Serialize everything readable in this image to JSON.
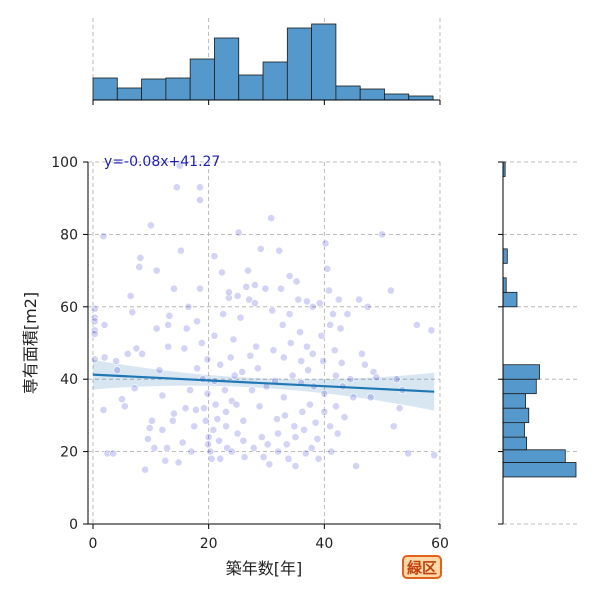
{
  "chart_data": {
    "type": "scatter",
    "subplots": "joint plot: scatter with linear regression, marginal histograms on top (x) and right (y)",
    "xlabel": "築年数[年]",
    "ylabel": "専有面積[m2]",
    "xlim": [
      0,
      60
    ],
    "ylim": [
      0,
      100
    ],
    "xticks": [
      0,
      20,
      40,
      60
    ],
    "yticks": [
      0,
      20,
      40,
      60,
      80,
      100
    ],
    "grid": true,
    "annotation": "y=-0.08x+41.27",
    "badge": "緑区",
    "colors": {
      "points": "#2222cc",
      "regression": "#1f77b4",
      "histogram": "#5599cc",
      "badge_bg": "#ffd9a8",
      "badge_border": "#e0621c"
    },
    "regression": {
      "slope": -0.08,
      "intercept": 41.27,
      "x_range": [
        0,
        59
      ]
    },
    "x_histogram": {
      "bin_edges": [
        0,
        4.2,
        8.4,
        12.6,
        16.8,
        21,
        25.2,
        29.4,
        33.6,
        37.8,
        42,
        46.2,
        50.4,
        54.6,
        58.8
      ],
      "counts": [
        22,
        12,
        21,
        22,
        41,
        62,
        25,
        38,
        72,
        76,
        14,
        11,
        6,
        4
      ]
    },
    "y_histogram": {
      "bin_edges": [
        13,
        17,
        20.5,
        24,
        28,
        32,
        36,
        40,
        44,
        48,
        52,
        56,
        60,
        64,
        68,
        72,
        76,
        80,
        84,
        88,
        92,
        96,
        100
      ],
      "counts": [
        68,
        58,
        22,
        20,
        24,
        21,
        31,
        34,
        0,
        0,
        0,
        0,
        13,
        3,
        0,
        4,
        0,
        0,
        0,
        0,
        0,
        2
      ]
    },
    "points": [
      [
        0.3,
        57
      ],
      [
        0.3,
        59.5
      ],
      [
        0.3,
        56
      ],
      [
        0.3,
        53.5
      ],
      [
        0.3,
        52.5
      ],
      [
        0.3,
        45.5
      ],
      [
        1.8,
        79.5
      ],
      [
        2,
        55
      ],
      [
        1.8,
        31.5
      ],
      [
        2,
        46
      ],
      [
        2.5,
        19.5
      ],
      [
        3.5,
        19.5
      ],
      [
        4,
        45
      ],
      [
        4.2,
        42.5
      ],
      [
        5,
        34.5
      ],
      [
        5.5,
        32.5
      ],
      [
        6,
        47
      ],
      [
        6.5,
        63
      ],
      [
        6.8,
        58.5
      ],
      [
        7.2,
        37.5
      ],
      [
        7.5,
        48.5
      ],
      [
        8,
        71
      ],
      [
        8.2,
        73.5
      ],
      [
        8.5,
        47
      ],
      [
        9,
        15
      ],
      [
        9.5,
        23.5
      ],
      [
        9.8,
        26.5
      ],
      [
        10,
        82.5
      ],
      [
        10.2,
        28.5
      ],
      [
        10.6,
        21
      ],
      [
        11,
        54
      ],
      [
        11,
        70
      ],
      [
        11.5,
        42.5
      ],
      [
        12,
        35.5
      ],
      [
        12.5,
        17.5
      ],
      [
        12,
        26
      ],
      [
        12.8,
        21
      ],
      [
        13,
        49
      ],
      [
        13,
        55
      ],
      [
        13.2,
        57.5
      ],
      [
        13.8,
        28.5
      ],
      [
        14,
        30.5
      ],
      [
        14,
        65
      ],
      [
        14.5,
        93
      ],
      [
        14.8,
        17
      ],
      [
        15,
        99
      ],
      [
        15.2,
        75.5
      ],
      [
        15.5,
        22.5
      ],
      [
        15.8,
        48.5
      ],
      [
        16,
        32
      ],
      [
        16.2,
        54
      ],
      [
        16.5,
        60
      ],
      [
        16.8,
        37
      ],
      [
        17,
        20
      ],
      [
        17.5,
        27
      ],
      [
        17.8,
        31.5
      ],
      [
        18,
        43
      ],
      [
        18,
        56
      ],
      [
        18.5,
        93
      ],
      [
        18.5,
        89.5
      ],
      [
        18.5,
        65
      ],
      [
        18.8,
        50
      ],
      [
        19,
        40
      ],
      [
        19.2,
        32
      ],
      [
        19.5,
        28.5
      ],
      [
        19.8,
        45.5
      ],
      [
        19.8,
        36
      ],
      [
        19.9,
        22
      ],
      [
        20,
        24
      ],
      [
        20.3,
        20
      ],
      [
        20.5,
        18
      ],
      [
        20.8,
        26
      ],
      [
        21,
        74
      ],
      [
        21,
        52
      ],
      [
        21,
        39.5
      ],
      [
        21.2,
        33
      ],
      [
        21.5,
        29
      ],
      [
        21.8,
        23
      ],
      [
        22,
        18
      ],
      [
        22,
        44
      ],
      [
        22.3,
        69.5
      ],
      [
        22.5,
        58
      ],
      [
        22.8,
        37
      ],
      [
        23,
        31
      ],
      [
        23,
        27
      ],
      [
        23.2,
        21
      ],
      [
        23.5,
        62.5
      ],
      [
        23.5,
        64
      ],
      [
        23.8,
        46
      ],
      [
        24,
        34
      ],
      [
        24,
        20
      ],
      [
        24.3,
        51
      ],
      [
        24.5,
        41
      ],
      [
        24.8,
        33
      ],
      [
        25,
        63
      ],
      [
        25,
        25
      ],
      [
        25.2,
        80.5
      ],
      [
        25.5,
        57
      ],
      [
        25.8,
        42
      ],
      [
        26,
        28.5
      ],
      [
        26,
        23
      ],
      [
        26.2,
        18.5
      ],
      [
        26.5,
        65.5
      ],
      [
        26.8,
        70
      ],
      [
        27,
        62
      ],
      [
        27.2,
        46.5
      ],
      [
        27.5,
        37
      ],
      [
        27.8,
        21
      ],
      [
        28,
        66
      ],
      [
        28,
        61
      ],
      [
        28.2,
        49
      ],
      [
        28.5,
        43
      ],
      [
        28.8,
        32.5
      ],
      [
        29,
        76
      ],
      [
        29.2,
        24
      ],
      [
        29.5,
        18.5
      ],
      [
        29.8,
        65
      ],
      [
        30,
        38
      ],
      [
        30.2,
        22
      ],
      [
        30.5,
        16.5
      ],
      [
        30.8,
        84.5
      ],
      [
        31,
        59
      ],
      [
        31.2,
        48
      ],
      [
        31.5,
        39.5
      ],
      [
        31.8,
        29
      ],
      [
        32,
        25
      ],
      [
        32,
        20
      ],
      [
        32.2,
        75.5
      ],
      [
        32.5,
        65
      ],
      [
        32.8,
        55
      ],
      [
        33,
        46
      ],
      [
        33,
        35
      ],
      [
        33.2,
        30
      ],
      [
        33.5,
        22
      ],
      [
        33.8,
        18
      ],
      [
        34,
        68.5
      ],
      [
        34,
        58
      ],
      [
        34.2,
        50
      ],
      [
        34.5,
        41
      ],
      [
        34.8,
        27
      ],
      [
        35,
        24
      ],
      [
        35,
        16
      ],
      [
        35.2,
        67
      ],
      [
        35.5,
        62
      ],
      [
        35.8,
        53
      ],
      [
        36,
        45
      ],
      [
        36,
        39
      ],
      [
        36.2,
        31
      ],
      [
        36.5,
        26
      ],
      [
        36.8,
        19.5
      ],
      [
        37,
        61.5
      ],
      [
        37,
        49
      ],
      [
        37.2,
        42.5
      ],
      [
        37.5,
        33
      ],
      [
        37.8,
        21
      ],
      [
        38,
        60
      ],
      [
        38,
        47
      ],
      [
        38.2,
        38
      ],
      [
        38.5,
        28
      ],
      [
        38.8,
        23.5
      ],
      [
        39,
        18
      ],
      [
        39.2,
        61
      ],
      [
        39.5,
        52
      ],
      [
        39.8,
        45
      ],
      [
        40,
        36
      ],
      [
        40,
        31
      ],
      [
        40.2,
        77.5
      ],
      [
        40.5,
        70.5
      ],
      [
        40.8,
        64.5
      ],
      [
        41,
        55
      ],
      [
        41,
        27
      ],
      [
        41.2,
        20
      ],
      [
        41.5,
        58
      ],
      [
        41.8,
        48
      ],
      [
        42,
        41
      ],
      [
        42,
        32.5
      ],
      [
        42.3,
        25
      ],
      [
        42.5,
        62
      ],
      [
        42.8,
        54
      ],
      [
        43,
        44.5
      ],
      [
        43.2,
        38
      ],
      [
        43.5,
        29.5
      ],
      [
        44,
        58
      ],
      [
        44.5,
        40
      ],
      [
        45,
        35
      ],
      [
        45.5,
        16
      ],
      [
        46,
        62
      ],
      [
        46.5,
        47
      ],
      [
        47,
        44
      ],
      [
        47.5,
        60
      ],
      [
        48,
        35
      ],
      [
        48.5,
        42
      ],
      [
        49,
        40.5
      ],
      [
        50,
        80
      ],
      [
        51.5,
        64.5
      ],
      [
        52,
        27
      ],
      [
        52.5,
        40
      ],
      [
        53,
        32
      ],
      [
        53.5,
        37
      ],
      [
        54.5,
        19.5
      ],
      [
        56,
        55
      ],
      [
        58.5,
        53.5
      ],
      [
        59,
        19
      ]
    ]
  }
}
